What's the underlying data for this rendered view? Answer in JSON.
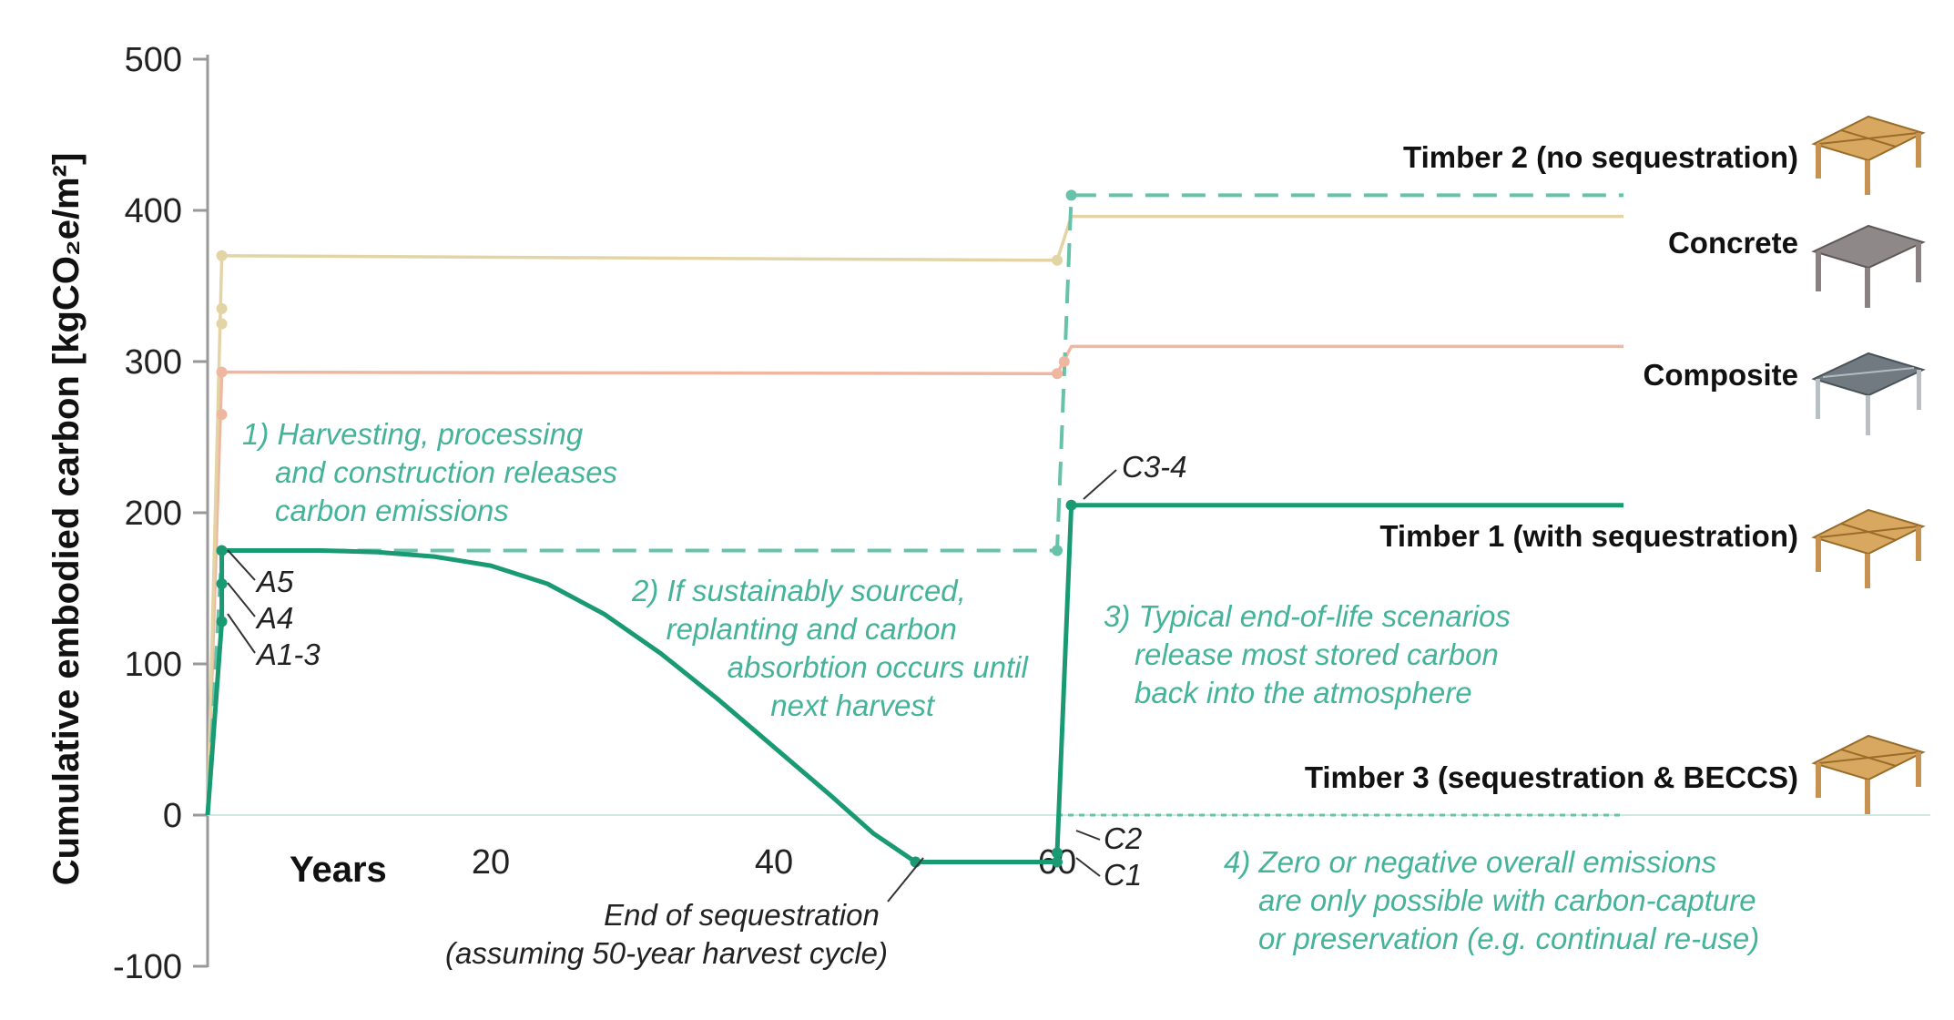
{
  "chart_data": {
    "type": "line",
    "ylabel": "Cumulative embodied carbon [kgCO₂e/m²]",
    "xlabel": "Years",
    "xlim": [
      0,
      100
    ],
    "ylim": [
      -100,
      500
    ],
    "x_ticks": [
      "20",
      "40",
      "60"
    ],
    "y_ticks": [
      "500",
      "400",
      "300",
      "200",
      "100",
      "0",
      "-100"
    ],
    "series": [
      {
        "name": "Timber 2 (no sequestration)",
        "color": "#66c2a8",
        "dash": "dashed",
        "points": [
          [
            0,
            0
          ],
          [
            1,
            175
          ],
          [
            60,
            175
          ],
          [
            61,
            410
          ],
          [
            100,
            410
          ]
        ]
      },
      {
        "name": "Concrete",
        "color": "#e2d4a4",
        "dash": "solid",
        "points": [
          [
            0,
            0
          ],
          [
            1,
            370
          ],
          [
            60,
            367
          ],
          [
            61,
            396
          ],
          [
            100,
            396
          ]
        ]
      },
      {
        "name": "Composite",
        "color": "#efb7a0",
        "dash": "solid",
        "points": [
          [
            0,
            0
          ],
          [
            1,
            293
          ],
          [
            60,
            292
          ],
          [
            61,
            310
          ],
          [
            100,
            310
          ]
        ]
      },
      {
        "name": "Timber 1 (with sequestration)",
        "color": "#1a9a73",
        "dash": "solid",
        "points": [
          [
            0,
            0
          ],
          [
            1,
            128
          ],
          [
            1,
            153
          ],
          [
            1,
            175
          ],
          [
            8,
            175
          ],
          [
            12,
            174
          ],
          [
            16,
            171
          ],
          [
            20,
            165
          ],
          [
            24,
            153
          ],
          [
            28,
            133
          ],
          [
            32,
            107
          ],
          [
            36,
            77
          ],
          [
            40,
            45
          ],
          [
            44,
            13
          ],
          [
            47,
            -12
          ],
          [
            50,
            -31
          ],
          [
            60,
            -31
          ],
          [
            60,
            -25
          ],
          [
            61,
            205
          ],
          [
            100,
            205
          ]
        ]
      },
      {
        "name": "Timber 3 (sequestration & BECCS)",
        "color": "#66c2a8",
        "dash": "dotted",
        "points": [
          [
            60,
            0
          ],
          [
            100,
            0
          ]
        ]
      }
    ],
    "stage_labels": [
      {
        "text": "A5",
        "x": 1,
        "y": 153
      },
      {
        "text": "A4",
        "x": 1,
        "y": 128
      },
      {
        "text": "A1-3",
        "x": 1,
        "y": 100
      },
      {
        "text": "C3-4",
        "x": 61,
        "y": 205
      },
      {
        "text": "C2",
        "x": 60,
        "y": -25
      },
      {
        "text": "C1",
        "x": 60,
        "y": -31
      }
    ],
    "annotations": {
      "note1": [
        "1) Harvesting, processing",
        "and construction releases",
        "carbon emissions"
      ],
      "note2": [
        "2) If sustainably sourced,",
        "replanting and carbon",
        "absorbtion occurs until",
        "next harvest"
      ],
      "note3": [
        "3) Typical end-of-life scenarios",
        "release most stored carbon",
        "back into the atmosphere"
      ],
      "note4": [
        "4) Zero or negative overall emissions",
        "are only possible with carbon-capture",
        "or preservation (e.g. continual re-use)"
      ],
      "end_seq": [
        "End of sequestration",
        "(assuming 50-year harvest cycle)"
      ]
    },
    "icons": [
      "timber-frame-icon",
      "concrete-frame-icon",
      "composite-frame-icon",
      "timber-frame-icon",
      "timber-frame-icon"
    ]
  }
}
